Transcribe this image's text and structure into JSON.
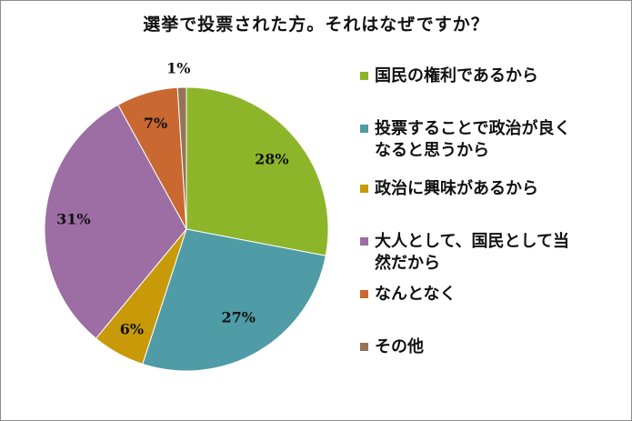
{
  "chart_data": {
    "type": "pie",
    "title": "選挙で投票された方。それはなぜですか？",
    "categories": [
      "国民の権利であるから",
      "投票することで政治が良くなると思うから",
      "政治に興味があるから",
      "大人として、国民として当然だから",
      "なんとなく",
      "その他"
    ],
    "legend_lines": [
      [
        "国民の権利であるから"
      ],
      [
        "投票することで政治が良く",
        "なると思うから"
      ],
      [
        "政治に興味があるから"
      ],
      [
        "大人として、国民として当",
        "然だから"
      ],
      [
        "なんとなく"
      ],
      [
        "その他"
      ]
    ],
    "values": [
      28,
      27,
      6,
      31,
      7,
      1
    ],
    "data_labels": [
      "28%",
      "27%",
      "6%",
      "31%",
      "7%",
      "1%"
    ],
    "colors": [
      "#8db52a",
      "#4f9ba6",
      "#c89a0a",
      "#9c6ea3",
      "#c96830",
      "#947458"
    ],
    "legend_position": "right"
  }
}
